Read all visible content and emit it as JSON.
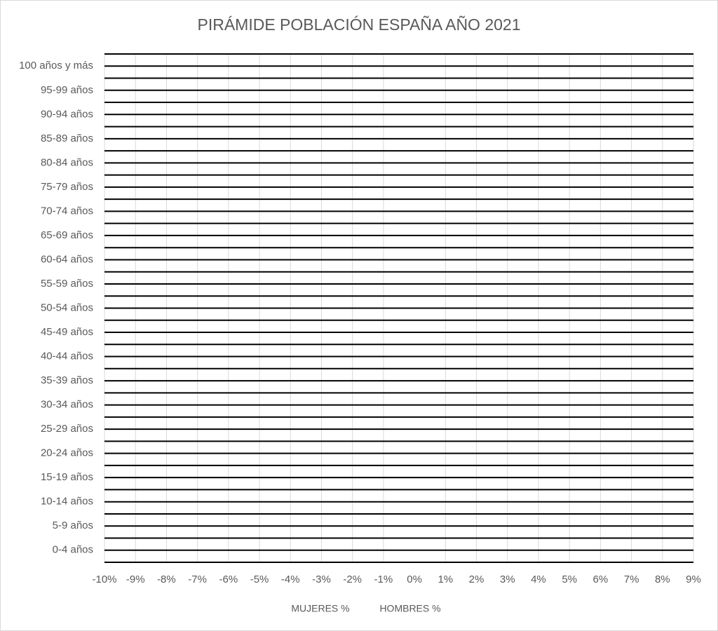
{
  "chart_data": {
    "type": "bar",
    "orientation": "horizontal",
    "title": "PIRÁMIDE POBLACIÓN ESPAÑA AÑO 2021",
    "categories": [
      "0-4 años",
      "5-9 años",
      "10-14 años",
      "15-19 años",
      "20-24 años",
      "25-29 años",
      "30-34 años",
      "35-39 años",
      "40-44 años",
      "45-49 años",
      "50-54 años",
      "55-59 años",
      "60-64 años",
      "65-69 años",
      "70-74 años",
      "75-79 años",
      "80-84 años",
      "85-89 años",
      "90-94 años",
      "95-99 años",
      "100 años y más"
    ],
    "series": [
      {
        "name": "MUJERES %",
        "values": [
          null,
          null,
          null,
          null,
          null,
          null,
          null,
          null,
          null,
          null,
          null,
          null,
          null,
          null,
          null,
          null,
          null,
          null,
          null,
          null,
          null
        ]
      },
      {
        "name": "HOMBRES %",
        "values": [
          null,
          null,
          null,
          null,
          null,
          null,
          null,
          null,
          null,
          null,
          null,
          null,
          null,
          null,
          null,
          null,
          null,
          null,
          null,
          null,
          null
        ]
      }
    ],
    "xlim": [
      -10,
      9
    ],
    "xticks": [
      {
        "value": -10,
        "label": "-10%"
      },
      {
        "value": -9,
        "label": "-9%"
      },
      {
        "value": -8,
        "label": "-8%"
      },
      {
        "value": -7,
        "label": "-7%"
      },
      {
        "value": -6,
        "label": "-6%"
      },
      {
        "value": -5,
        "label": "-5%"
      },
      {
        "value": -4,
        "label": "-4%"
      },
      {
        "value": -3,
        "label": "-3%"
      },
      {
        "value": -2,
        "label": "-2%"
      },
      {
        "value": -1,
        "label": "-1%"
      },
      {
        "value": 0,
        "label": "0%"
      },
      {
        "value": 1,
        "label": "1%"
      },
      {
        "value": 2,
        "label": "2%"
      },
      {
        "value": 3,
        "label": "3%"
      },
      {
        "value": 4,
        "label": "4%"
      },
      {
        "value": 5,
        "label": "5%"
      },
      {
        "value": 6,
        "label": "6%"
      },
      {
        "value": 7,
        "label": "7%"
      },
      {
        "value": 8,
        "label": "8%"
      },
      {
        "value": 9,
        "label": "9%"
      }
    ],
    "grid": true,
    "legend": "bottom"
  }
}
